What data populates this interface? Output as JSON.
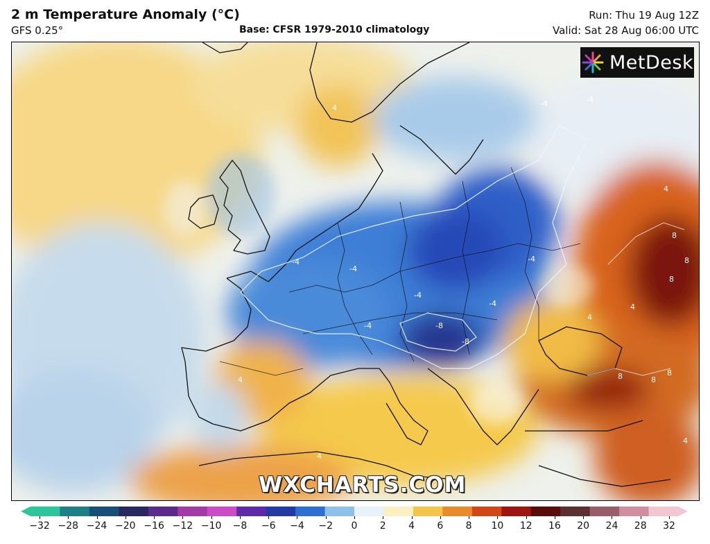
{
  "header": {
    "title": "2 m Temperature Anomaly (°C)",
    "model": "GFS 0.25°",
    "base": "Base: CFSR 1979-2010 climatology",
    "run": "Run: Thu 19 Aug 12Z",
    "valid": "Valid: Sat 28 Aug 06:00 UTC"
  },
  "logo": {
    "text": "MetDesk"
  },
  "watermark": "WXCHARTS.COM",
  "colorbar": {
    "ticks": [
      "−32",
      "−28",
      "−24",
      "−20",
      "−16",
      "−12",
      "−10",
      "−8",
      "−6",
      "−4",
      "−2",
      "0",
      "2",
      "4",
      "6",
      "8",
      "10",
      "12",
      "16",
      "20",
      "24",
      "28",
      "32"
    ],
    "colors": [
      "#2ec59a",
      "#1e7f86",
      "#184e78",
      "#2a2860",
      "#5c2a8a",
      "#a43aa6",
      "#cc4cc8",
      "#5f2aa7",
      "#2339a6",
      "#2f6fd0",
      "#8fc0e8",
      "#e8f2fa",
      "#fbf0c4",
      "#f2c64a",
      "#e98b2a",
      "#d2471a",
      "#9c1510",
      "#5a0c0c",
      "#5a3030",
      "#9a5d6a",
      "#d08fa1",
      "#f0c7d2"
    ]
  },
  "map": {
    "contour_labels": [
      "4",
      "-4",
      "-4",
      "-4",
      "-4",
      "-4",
      "-4",
      "-8",
      "-8",
      "-4",
      "-4",
      "4",
      "4",
      "8",
      "8",
      "8",
      "8",
      "8",
      "8",
      "4",
      "4",
      "4",
      "4"
    ]
  }
}
